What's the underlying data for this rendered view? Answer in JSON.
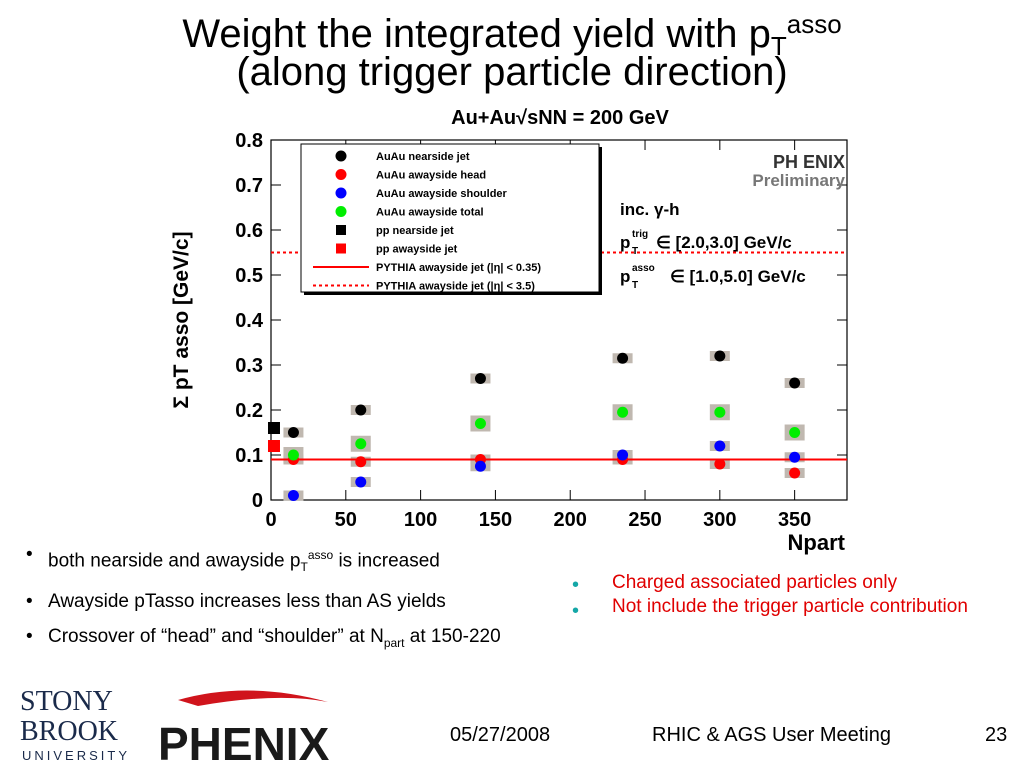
{
  "title": {
    "line1_prefix": "Weight the integrated yield with p",
    "line1_sub": "T",
    "line1_sup": "asso",
    "line2": "(along trigger particle direction)"
  },
  "chart_data": {
    "type": "scatter",
    "title": "Au+Au√sNN = 200 GeV",
    "xlabel": "Npart",
    "ylabel": "Σ pT asso [GeV/c]",
    "xlim": [
      0,
      385
    ],
    "ylim": [
      0,
      0.8
    ],
    "x_ticks": [
      "0",
      "50",
      "100",
      "150",
      "200",
      "250",
      "300",
      "350"
    ],
    "y_ticks": [
      "0",
      "0.1",
      "0.2",
      "0.3",
      "0.4",
      "0.5",
      "0.6",
      "0.7",
      "0.8"
    ],
    "grid": false,
    "legend_placement": "top-left",
    "series": [
      {
        "name": "AuAu nearside jet",
        "color": "#000000",
        "marker": "circle",
        "x": [
          15,
          60,
          140,
          235,
          300,
          350
        ],
        "y": [
          0.15,
          0.2,
          0.27,
          0.315,
          0.32,
          0.26
        ]
      },
      {
        "name": "AuAu awayside head",
        "color": "#ff0000",
        "marker": "circle",
        "x": [
          15,
          60,
          140,
          235,
          300,
          350
        ],
        "y": [
          0.09,
          0.085,
          0.09,
          0.09,
          0.08,
          0.06
        ]
      },
      {
        "name": "AuAu awayside shoulder",
        "color": "#0000ff",
        "marker": "circle",
        "x": [
          15,
          60,
          140,
          235,
          300,
          350
        ],
        "y": [
          0.01,
          0.04,
          0.075,
          0.1,
          0.12,
          0.095
        ]
      },
      {
        "name": "AuAu awayside total",
        "color": "#00ee00",
        "marker": "circle",
        "x": [
          15,
          60,
          140,
          235,
          300,
          350
        ],
        "y": [
          0.1,
          0.125,
          0.17,
          0.195,
          0.195,
          0.15
        ]
      },
      {
        "name": "pp nearside jet",
        "color": "#000000",
        "marker": "square",
        "x": [
          2
        ],
        "y": [
          0.16
        ]
      },
      {
        "name": "pp awayside jet",
        "color": "#ff0000",
        "marker": "square",
        "x": [
          2
        ],
        "y": [
          0.12
        ]
      },
      {
        "name": "PYTHIA awayside jet (|η| < 0.35)",
        "color": "#ff0000",
        "marker": "line-solid",
        "y_const": 0.09
      },
      {
        "name": "PYTHIA awayside jet (|η| < 3.5)",
        "color": "#ff0000",
        "marker": "line-dotted",
        "y_const": 0.55
      }
    ],
    "annotations": {
      "experiment": "PH ENIX",
      "status": "Preliminary",
      "inc": "inc. γ-h",
      "trig_range": "∈ [2.0,3.0] GeV/c",
      "asso_range": "∈ [1.0,5.0] GeV/c",
      "trig_label": "p",
      "trig_sup": "trig",
      "trig_sub": "T",
      "asso_label": "p",
      "asso_sup": "asso",
      "asso_sub": "T"
    }
  },
  "bullets": [
    {
      "text": "both nearside and awayside p",
      "sub": "T",
      "sup": "asso",
      "tail": " is increased"
    },
    {
      "text": "Awayside pTasso increases less than AS yields"
    },
    {
      "text": "Crossover of “head” and “shoulder” at N",
      "sub": "part",
      "tail": " at 150-220"
    }
  ],
  "notes": [
    "Charged associated particles only",
    "Not include the trigger particle contribution"
  ],
  "footer": {
    "date": "05/27/2008",
    "event": "RHIC & AGS User Meeting",
    "page": "23"
  },
  "logos": {
    "university": [
      "STONY",
      "BROOK",
      "UNIVERSITY"
    ],
    "experiment": "PHENIX"
  },
  "colors": {
    "syst_box": "#c0b8b0",
    "note_red": "#e00000",
    "teal": "#15a7a7"
  }
}
